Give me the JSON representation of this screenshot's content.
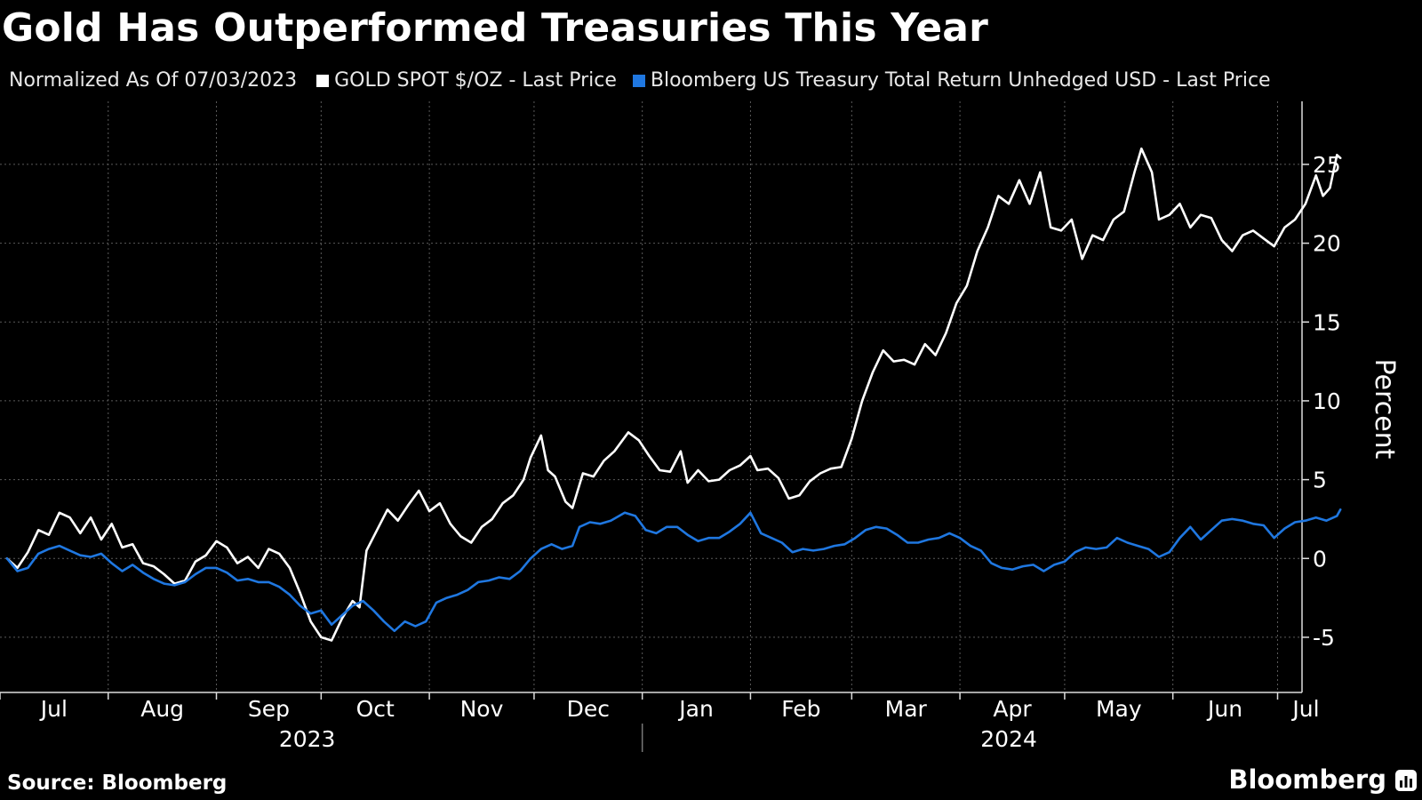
{
  "header": {
    "title": "Gold Has Outperformed Treasuries This Year"
  },
  "legend": {
    "note": "Normalized As Of 07/03/2023",
    "items": [
      {
        "label": "GOLD SPOT $/OZ - Last Price",
        "color": "#ffffff"
      },
      {
        "label": "Bloomberg US Treasury Total Return Unhedged USD - Last Price",
        "color": "#1f77e0"
      }
    ]
  },
  "footer": {
    "source": "Source: Bloomberg",
    "brand": "Bloomberg",
    "brand_icon": "bloomberg-bars-icon"
  },
  "chart_data": {
    "type": "line",
    "ylabel": "Percent",
    "ylim": [
      -8.5,
      29
    ],
    "yticks": [
      -5,
      0,
      5,
      10,
      15,
      20,
      25
    ],
    "xlim": [
      "2023-07-01",
      "2024-07-08"
    ],
    "x_ticks": [
      {
        "label": "Jul",
        "date": "2023-07-01"
      },
      {
        "label": "Aug",
        "date": "2023-08-01"
      },
      {
        "label": "Sep",
        "date": "2023-09-01"
      },
      {
        "label": "Oct",
        "date": "2023-10-01"
      },
      {
        "label": "Nov",
        "date": "2023-11-01"
      },
      {
        "label": "Dec",
        "date": "2023-12-01"
      },
      {
        "label": "Jan",
        "date": "2024-01-01"
      },
      {
        "label": "Feb",
        "date": "2024-02-01"
      },
      {
        "label": "Mar",
        "date": "2024-03-01"
      },
      {
        "label": "Apr",
        "date": "2024-04-01"
      },
      {
        "label": "May",
        "date": "2024-05-01"
      },
      {
        "label": "Jun",
        "date": "2024-06-01"
      },
      {
        "label": "Jul",
        "date": "2024-07-01"
      }
    ],
    "years": [
      {
        "label": "2023",
        "date": "2023-09-27"
      },
      {
        "label": "2024",
        "date": "2024-04-15"
      }
    ],
    "year_divider": "2024-01-01",
    "grid": true,
    "series": [
      {
        "name": "GOLD SPOT $/OZ - Last Price",
        "color": "#ffffff",
        "points": [
          [
            "2023-07-03",
            0.0
          ],
          [
            "2023-07-06",
            -0.6
          ],
          [
            "2023-07-09",
            0.4
          ],
          [
            "2023-07-12",
            1.8
          ],
          [
            "2023-07-15",
            1.5
          ],
          [
            "2023-07-18",
            2.9
          ],
          [
            "2023-07-21",
            2.6
          ],
          [
            "2023-07-24",
            1.6
          ],
          [
            "2023-07-27",
            2.6
          ],
          [
            "2023-07-30",
            1.2
          ],
          [
            "2023-08-02",
            2.2
          ],
          [
            "2023-08-05",
            0.7
          ],
          [
            "2023-08-08",
            0.9
          ],
          [
            "2023-08-11",
            -0.3
          ],
          [
            "2023-08-14",
            -0.5
          ],
          [
            "2023-08-17",
            -1.0
          ],
          [
            "2023-08-20",
            -1.6
          ],
          [
            "2023-08-23",
            -1.4
          ],
          [
            "2023-08-26",
            -0.2
          ],
          [
            "2023-08-29",
            0.2
          ],
          [
            "2023-09-01",
            1.1
          ],
          [
            "2023-09-04",
            0.7
          ],
          [
            "2023-09-07",
            -0.3
          ],
          [
            "2023-09-10",
            0.1
          ],
          [
            "2023-09-13",
            -0.6
          ],
          [
            "2023-09-16",
            0.6
          ],
          [
            "2023-09-19",
            0.3
          ],
          [
            "2023-09-22",
            -0.6
          ],
          [
            "2023-09-25",
            -2.2
          ],
          [
            "2023-09-28",
            -4.0
          ],
          [
            "2023-10-01",
            -5.0
          ],
          [
            "2023-10-04",
            -5.2
          ],
          [
            "2023-10-07",
            -3.8
          ],
          [
            "2023-10-10",
            -2.7
          ],
          [
            "2023-10-12",
            -3.1
          ],
          [
            "2023-10-14",
            0.5
          ],
          [
            "2023-10-17",
            1.8
          ],
          [
            "2023-10-20",
            3.1
          ],
          [
            "2023-10-23",
            2.4
          ],
          [
            "2023-10-26",
            3.4
          ],
          [
            "2023-10-29",
            4.3
          ],
          [
            "2023-11-01",
            3.0
          ],
          [
            "2023-11-04",
            3.5
          ],
          [
            "2023-11-07",
            2.2
          ],
          [
            "2023-11-10",
            1.4
          ],
          [
            "2023-11-13",
            1.0
          ],
          [
            "2023-11-16",
            2.0
          ],
          [
            "2023-11-19",
            2.5
          ],
          [
            "2023-11-22",
            3.5
          ],
          [
            "2023-11-25",
            4.0
          ],
          [
            "2023-11-28",
            5.0
          ],
          [
            "2023-11-30",
            6.4
          ],
          [
            "2023-12-03",
            7.8
          ],
          [
            "2023-12-05",
            5.6
          ],
          [
            "2023-12-07",
            5.2
          ],
          [
            "2023-12-10",
            3.6
          ],
          [
            "2023-12-12",
            3.2
          ],
          [
            "2023-12-15",
            5.4
          ],
          [
            "2023-12-18",
            5.2
          ],
          [
            "2023-12-21",
            6.2
          ],
          [
            "2023-12-24",
            6.8
          ],
          [
            "2023-12-28",
            8.0
          ],
          [
            "2023-12-31",
            7.5
          ],
          [
            "2024-01-03",
            6.5
          ],
          [
            "2024-01-06",
            5.6
          ],
          [
            "2024-01-09",
            5.5
          ],
          [
            "2024-01-12",
            6.8
          ],
          [
            "2024-01-14",
            4.8
          ],
          [
            "2024-01-17",
            5.6
          ],
          [
            "2024-01-20",
            4.9
          ],
          [
            "2024-01-23",
            5.0
          ],
          [
            "2024-01-26",
            5.6
          ],
          [
            "2024-01-29",
            5.9
          ],
          [
            "2024-02-01",
            6.5
          ],
          [
            "2024-02-03",
            5.6
          ],
          [
            "2024-02-06",
            5.7
          ],
          [
            "2024-02-09",
            5.1
          ],
          [
            "2024-02-12",
            3.8
          ],
          [
            "2024-02-15",
            4.0
          ],
          [
            "2024-02-18",
            4.9
          ],
          [
            "2024-02-21",
            5.4
          ],
          [
            "2024-02-24",
            5.7
          ],
          [
            "2024-02-27",
            5.8
          ],
          [
            "2024-03-01",
            7.6
          ],
          [
            "2024-03-04",
            10.0
          ],
          [
            "2024-03-07",
            11.8
          ],
          [
            "2024-03-10",
            13.2
          ],
          [
            "2024-03-13",
            12.5
          ],
          [
            "2024-03-16",
            12.6
          ],
          [
            "2024-03-19",
            12.3
          ],
          [
            "2024-03-22",
            13.6
          ],
          [
            "2024-03-25",
            12.9
          ],
          [
            "2024-03-28",
            14.3
          ],
          [
            "2024-03-31",
            16.2
          ],
          [
            "2024-04-03",
            17.3
          ],
          [
            "2024-04-06",
            19.5
          ],
          [
            "2024-04-09",
            21.0
          ],
          [
            "2024-04-12",
            23.0
          ],
          [
            "2024-04-15",
            22.5
          ],
          [
            "2024-04-18",
            24.0
          ],
          [
            "2024-04-21",
            22.5
          ],
          [
            "2024-04-24",
            24.5
          ],
          [
            "2024-04-27",
            21.0
          ],
          [
            "2024-04-30",
            20.8
          ],
          [
            "2024-05-03",
            21.5
          ],
          [
            "2024-05-06",
            19.0
          ],
          [
            "2024-05-09",
            20.5
          ],
          [
            "2024-05-12",
            20.2
          ],
          [
            "2024-05-15",
            21.5
          ],
          [
            "2024-05-18",
            22.0
          ],
          [
            "2024-05-21",
            24.5
          ],
          [
            "2024-05-23",
            26.0
          ],
          [
            "2024-05-26",
            24.5
          ],
          [
            "2024-05-28",
            21.5
          ],
          [
            "2024-05-31",
            21.8
          ],
          [
            "2024-06-03",
            22.5
          ],
          [
            "2024-06-06",
            21.0
          ],
          [
            "2024-06-09",
            21.8
          ],
          [
            "2024-06-12",
            21.6
          ],
          [
            "2024-06-15",
            20.2
          ],
          [
            "2024-06-18",
            19.5
          ],
          [
            "2024-06-21",
            20.5
          ],
          [
            "2024-06-24",
            20.8
          ],
          [
            "2024-06-27",
            20.3
          ],
          [
            "2024-06-30",
            19.8
          ],
          [
            "2024-07-03",
            21.0
          ],
          [
            "2024-07-06",
            21.5
          ],
          [
            "2024-07-09",
            22.5
          ],
          [
            "2024-07-12",
            24.3
          ],
          [
            "2024-07-14",
            23.0
          ],
          [
            "2024-07-16",
            23.5
          ],
          [
            "2024-07-18",
            25.6
          ],
          [
            "2024-07-19",
            25.4
          ]
        ]
      },
      {
        "name": "Bloomberg US Treasury Total Return Unhedged USD - Last Price",
        "color": "#1f77e0",
        "points": [
          [
            "2023-07-03",
            0.0
          ],
          [
            "2023-07-06",
            -0.8
          ],
          [
            "2023-07-09",
            -0.6
          ],
          [
            "2023-07-12",
            0.3
          ],
          [
            "2023-07-15",
            0.6
          ],
          [
            "2023-07-18",
            0.8
          ],
          [
            "2023-07-21",
            0.5
          ],
          [
            "2023-07-24",
            0.2
          ],
          [
            "2023-07-27",
            0.1
          ],
          [
            "2023-07-30",
            0.3
          ],
          [
            "2023-08-02",
            -0.3
          ],
          [
            "2023-08-05",
            -0.8
          ],
          [
            "2023-08-08",
            -0.4
          ],
          [
            "2023-08-11",
            -0.9
          ],
          [
            "2023-08-14",
            -1.3
          ],
          [
            "2023-08-17",
            -1.6
          ],
          [
            "2023-08-20",
            -1.7
          ],
          [
            "2023-08-23",
            -1.5
          ],
          [
            "2023-08-26",
            -1.0
          ],
          [
            "2023-08-29",
            -0.6
          ],
          [
            "2023-09-01",
            -0.6
          ],
          [
            "2023-09-04",
            -0.9
          ],
          [
            "2023-09-07",
            -1.4
          ],
          [
            "2023-09-10",
            -1.3
          ],
          [
            "2023-09-13",
            -1.5
          ],
          [
            "2023-09-16",
            -1.5
          ],
          [
            "2023-09-19",
            -1.8
          ],
          [
            "2023-09-22",
            -2.3
          ],
          [
            "2023-09-25",
            -3.0
          ],
          [
            "2023-09-28",
            -3.5
          ],
          [
            "2023-10-01",
            -3.3
          ],
          [
            "2023-10-04",
            -4.2
          ],
          [
            "2023-10-07",
            -3.6
          ],
          [
            "2023-10-10",
            -3.0
          ],
          [
            "2023-10-13",
            -2.7
          ],
          [
            "2023-10-16",
            -3.3
          ],
          [
            "2023-10-19",
            -4.0
          ],
          [
            "2023-10-22",
            -4.6
          ],
          [
            "2023-10-25",
            -4.0
          ],
          [
            "2023-10-28",
            -4.3
          ],
          [
            "2023-10-31",
            -4.0
          ],
          [
            "2023-11-03",
            -2.8
          ],
          [
            "2023-11-06",
            -2.5
          ],
          [
            "2023-11-09",
            -2.3
          ],
          [
            "2023-11-12",
            -2.0
          ],
          [
            "2023-11-15",
            -1.5
          ],
          [
            "2023-11-18",
            -1.4
          ],
          [
            "2023-11-21",
            -1.2
          ],
          [
            "2023-11-24",
            -1.3
          ],
          [
            "2023-11-27",
            -0.8
          ],
          [
            "2023-11-30",
            0.0
          ],
          [
            "2023-12-03",
            0.6
          ],
          [
            "2023-12-06",
            0.9
          ],
          [
            "2023-12-09",
            0.6
          ],
          [
            "2023-12-12",
            0.8
          ],
          [
            "2023-12-14",
            2.0
          ],
          [
            "2023-12-17",
            2.3
          ],
          [
            "2023-12-20",
            2.2
          ],
          [
            "2023-12-23",
            2.4
          ],
          [
            "2023-12-27",
            2.9
          ],
          [
            "2023-12-30",
            2.7
          ],
          [
            "2024-01-02",
            1.8
          ],
          [
            "2024-01-05",
            1.6
          ],
          [
            "2024-01-08",
            2.0
          ],
          [
            "2024-01-11",
            2.0
          ],
          [
            "2024-01-14",
            1.5
          ],
          [
            "2024-01-17",
            1.1
          ],
          [
            "2024-01-20",
            1.3
          ],
          [
            "2024-01-23",
            1.3
          ],
          [
            "2024-01-26",
            1.7
          ],
          [
            "2024-01-29",
            2.2
          ],
          [
            "2024-02-01",
            2.9
          ],
          [
            "2024-02-04",
            1.6
          ],
          [
            "2024-02-07",
            1.3
          ],
          [
            "2024-02-10",
            1.0
          ],
          [
            "2024-02-13",
            0.4
          ],
          [
            "2024-02-16",
            0.6
          ],
          [
            "2024-02-19",
            0.5
          ],
          [
            "2024-02-22",
            0.6
          ],
          [
            "2024-02-25",
            0.8
          ],
          [
            "2024-02-28",
            0.9
          ],
          [
            "2024-03-02",
            1.3
          ],
          [
            "2024-03-05",
            1.8
          ],
          [
            "2024-03-08",
            2.0
          ],
          [
            "2024-03-11",
            1.9
          ],
          [
            "2024-03-14",
            1.5
          ],
          [
            "2024-03-17",
            1.0
          ],
          [
            "2024-03-20",
            1.0
          ],
          [
            "2024-03-23",
            1.2
          ],
          [
            "2024-03-26",
            1.3
          ],
          [
            "2024-03-29",
            1.6
          ],
          [
            "2024-04-01",
            1.3
          ],
          [
            "2024-04-04",
            0.8
          ],
          [
            "2024-04-07",
            0.5
          ],
          [
            "2024-04-10",
            -0.3
          ],
          [
            "2024-04-13",
            -0.6
          ],
          [
            "2024-04-16",
            -0.7
          ],
          [
            "2024-04-19",
            -0.5
          ],
          [
            "2024-04-22",
            -0.4
          ],
          [
            "2024-04-25",
            -0.8
          ],
          [
            "2024-04-28",
            -0.4
          ],
          [
            "2024-05-01",
            -0.2
          ],
          [
            "2024-05-04",
            0.4
          ],
          [
            "2024-05-07",
            0.7
          ],
          [
            "2024-05-10",
            0.6
          ],
          [
            "2024-05-13",
            0.7
          ],
          [
            "2024-05-16",
            1.3
          ],
          [
            "2024-05-19",
            1.0
          ],
          [
            "2024-05-22",
            0.8
          ],
          [
            "2024-05-25",
            0.6
          ],
          [
            "2024-05-28",
            0.1
          ],
          [
            "2024-05-31",
            0.4
          ],
          [
            "2024-06-03",
            1.3
          ],
          [
            "2024-06-06",
            2.0
          ],
          [
            "2024-06-09",
            1.2
          ],
          [
            "2024-06-12",
            1.8
          ],
          [
            "2024-06-15",
            2.4
          ],
          [
            "2024-06-18",
            2.5
          ],
          [
            "2024-06-21",
            2.4
          ],
          [
            "2024-06-24",
            2.2
          ],
          [
            "2024-06-27",
            2.1
          ],
          [
            "2024-06-30",
            1.3
          ],
          [
            "2024-07-03",
            1.9
          ],
          [
            "2024-07-06",
            2.3
          ],
          [
            "2024-07-09",
            2.4
          ],
          [
            "2024-07-12",
            2.6
          ],
          [
            "2024-07-15",
            2.4
          ],
          [
            "2024-07-18",
            2.7
          ],
          [
            "2024-07-19",
            3.1
          ]
        ]
      }
    ]
  }
}
